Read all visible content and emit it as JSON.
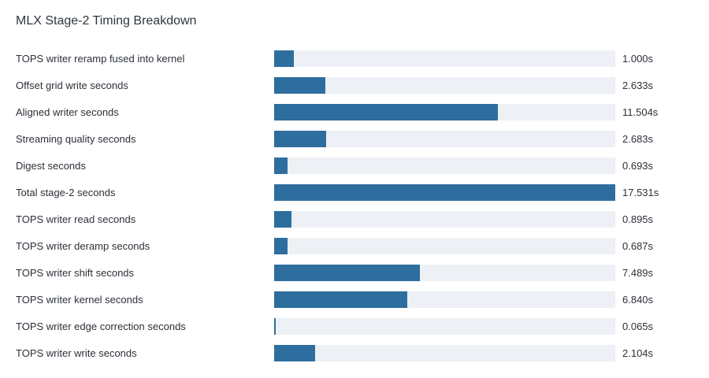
{
  "chart_data": {
    "type": "bar",
    "orientation": "horizontal",
    "title": "MLX Stage-2 Timing Breakdown",
    "xlabel": "",
    "ylabel": "",
    "unit": "s",
    "xlim": [
      0,
      17.531
    ],
    "grid": false,
    "bar_color": "#2e6e9e",
    "track_color": "#edf0f5",
    "categories": [
      "TOPS writer reramp fused into kernel",
      "Offset grid write seconds",
      "Aligned writer seconds",
      "Streaming quality seconds",
      "Digest seconds",
      "Total stage-2 seconds",
      "TOPS writer read seconds",
      "TOPS writer deramp seconds",
      "TOPS writer shift seconds",
      "TOPS writer kernel seconds",
      "TOPS writer edge correction seconds",
      "TOPS writer write seconds"
    ],
    "values": [
      1.0,
      2.633,
      11.504,
      2.683,
      0.693,
      17.531,
      0.895,
      0.687,
      7.489,
      6.84,
      0.065,
      2.104
    ],
    "value_labels": [
      "1.000s",
      "2.633s",
      "11.504s",
      "2.683s",
      "0.693s",
      "17.531s",
      "0.895s",
      "0.687s",
      "7.489s",
      "6.840s",
      "0.065s",
      "2.104s"
    ]
  }
}
